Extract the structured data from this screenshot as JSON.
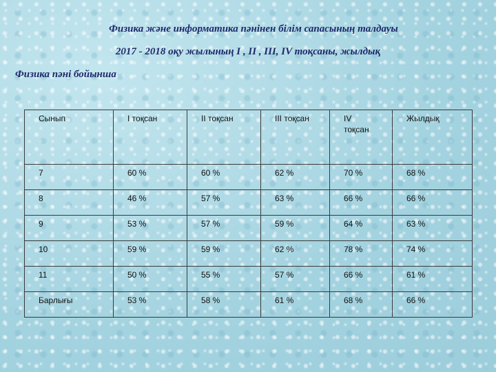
{
  "title_line1": "Физика және информатика  пәнінен білім сапасының талдауы",
  "title_line2": "2017 - 2018 оқу жылының I , II , III, IV тоқсаны, жылдық",
  "subtitle": "Физика пәні бойынша",
  "table": {
    "headers": [
      "Сынып",
      "I  тоқсан",
      "II тоқсан",
      "III тоқсан",
      "IV тоқсан",
      "Жылдық"
    ],
    "rows": [
      [
        "7",
        "60 %",
        "60 %",
        "62 %",
        "70 %",
        "68 %"
      ],
      [
        "8",
        "46 %",
        "57 %",
        "63 %",
        "66 %",
        "66 %"
      ],
      [
        "9",
        "53 %",
        "57 %",
        "59 %",
        "64 %",
        "63 %"
      ],
      [
        "10",
        "59 %",
        "59 %",
        "62 %",
        "78 %",
        "74 %"
      ],
      [
        "11",
        "50 %",
        "55 %",
        "57 %",
        "66 %",
        "61 %"
      ],
      [
        "Барлығы",
        "53 %",
        "58 %",
        "61 %",
        "68 %",
        "66 %"
      ]
    ]
  }
}
